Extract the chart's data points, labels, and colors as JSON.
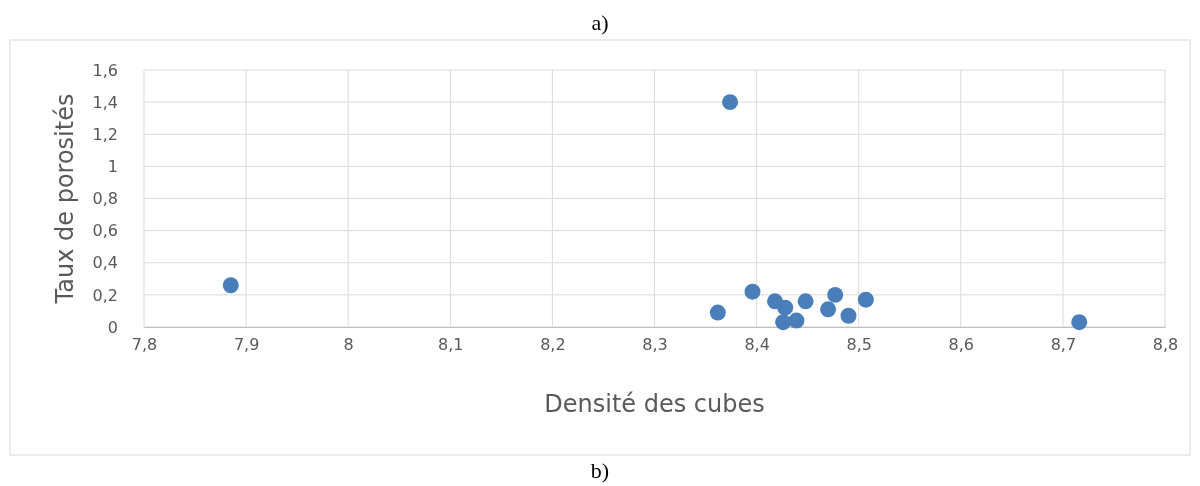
{
  "chart_data": {
    "type": "scatter",
    "xlabel": "Densité des cubes",
    "ylabel": "Taux de porosités",
    "annotations": [
      "a)",
      "b)"
    ],
    "series": [
      {
        "color": "#4a7ebb",
        "x": [
          7.885,
          8.374,
          8.362,
          8.396,
          8.418,
          8.428,
          8.426,
          8.439,
          8.448,
          8.47,
          8.477,
          8.49,
          8.507,
          8.716
        ],
        "values": [
          0.26,
          1.4,
          0.09,
          0.22,
          0.16,
          0.12,
          0.03,
          0.04,
          0.16,
          0.11,
          0.2,
          0.07,
          0.17,
          0.03
        ]
      }
    ],
    "xlim": [
      7.8,
      8.8
    ],
    "ylim": [
      0,
      1.6
    ],
    "xticks": [
      {
        "value": 7.8,
        "label": "7,8"
      },
      {
        "value": 7.9,
        "label": "7,9"
      },
      8,
      {
        "value": 8.1,
        "label": "8,1"
      },
      {
        "value": 8.2,
        "label": "8,2"
      },
      {
        "value": 8.3,
        "label": "8,3"
      },
      {
        "value": 8.4,
        "label": "8,4"
      },
      {
        "value": 8.5,
        "label": "8,5"
      },
      {
        "value": 8.6,
        "label": "8,6"
      },
      {
        "value": 8.7,
        "label": "8,7"
      },
      {
        "value": 8.8,
        "label": "8,8"
      }
    ],
    "yticks": [
      0,
      {
        "value": 0.2,
        "label": "0,2"
      },
      {
        "value": 0.4,
        "label": "0,4"
      },
      {
        "value": 0.6,
        "label": "0,6"
      },
      {
        "value": 0.8,
        "label": "0,8"
      },
      1,
      {
        "value": 1.2,
        "label": "1,2"
      },
      {
        "value": 1.4,
        "label": "1,4"
      },
      {
        "value": 1.6,
        "label": "1,6"
      }
    ],
    "grid": true,
    "marker": "circle"
  }
}
